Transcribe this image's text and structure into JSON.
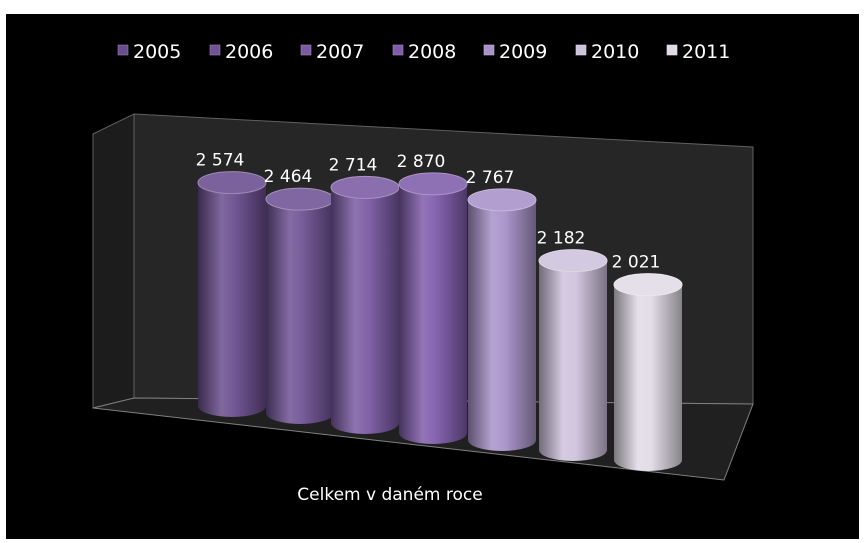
{
  "chart_data": {
    "type": "bar",
    "style": "3d-cylinder",
    "title": "",
    "categories": [
      "Celkem v daném roce"
    ],
    "series": [
      {
        "name": "2005",
        "values": [
          2574
        ],
        "label": "2 574",
        "color": "#6a4d8e"
      },
      {
        "name": "2006",
        "values": [
          2464
        ],
        "label": "2 464",
        "color": "#6f5294"
      },
      {
        "name": "2007",
        "values": [
          2714
        ],
        "label": "2 714",
        "color": "#7a5aa3"
      },
      {
        "name": "2008",
        "values": [
          2870
        ],
        "label": "2 870",
        "color": "#7f5cab"
      },
      {
        "name": "2009",
        "values": [
          2767
        ],
        "label": "2 767",
        "color": "#a892c8"
      },
      {
        "name": "2010",
        "values": [
          2182
        ],
        "label": "2 182",
        "color": "#cdc2dc"
      },
      {
        "name": "2011",
        "values": [
          2021
        ],
        "label": "2 021",
        "color": "#e0dbe6"
      }
    ],
    "ylim": [
      0,
      3200
    ],
    "legend_position": "top",
    "grid": false,
    "background": "#000000",
    "text_color": "#ffffff"
  }
}
